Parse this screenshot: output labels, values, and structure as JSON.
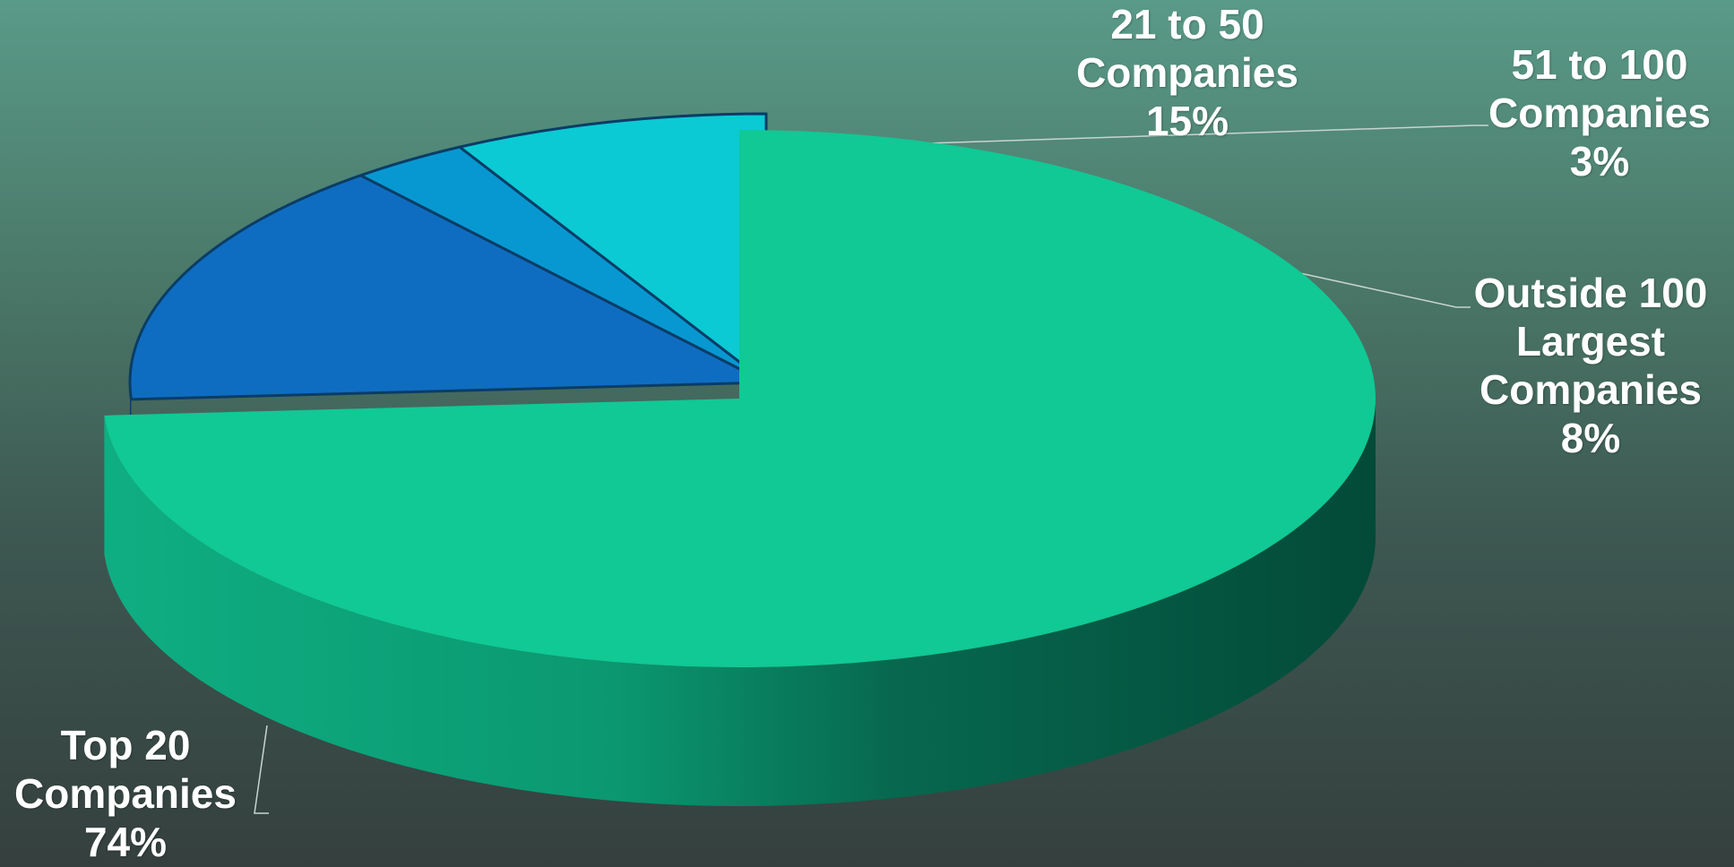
{
  "chart_data": {
    "type": "pie",
    "title": "",
    "slices": [
      {
        "key": "top20",
        "label_lines": [
          "Top 20",
          "Companies"
        ],
        "percent_text": "74%",
        "value": 74,
        "color": "#10c995"
      },
      {
        "key": "21to50",
        "label_lines": [
          "21 to 50",
          "Companies"
        ],
        "percent_text": "15%",
        "value": 15,
        "color": "#0f6dc1"
      },
      {
        "key": "51to100",
        "label_lines": [
          "51 to 100",
          "Companies"
        ],
        "percent_text": "3%",
        "value": 3,
        "color": "#0898d1"
      },
      {
        "key": "outside100",
        "label_lines": [
          "Outside 100",
          "Largest",
          "Companies"
        ],
        "percent_text": "8%",
        "value": 8,
        "color": "#0bcad4"
      }
    ],
    "style": "3d-exploded",
    "exploded": [
      "21to50",
      "51to100",
      "outside100"
    ],
    "legend": "none"
  }
}
